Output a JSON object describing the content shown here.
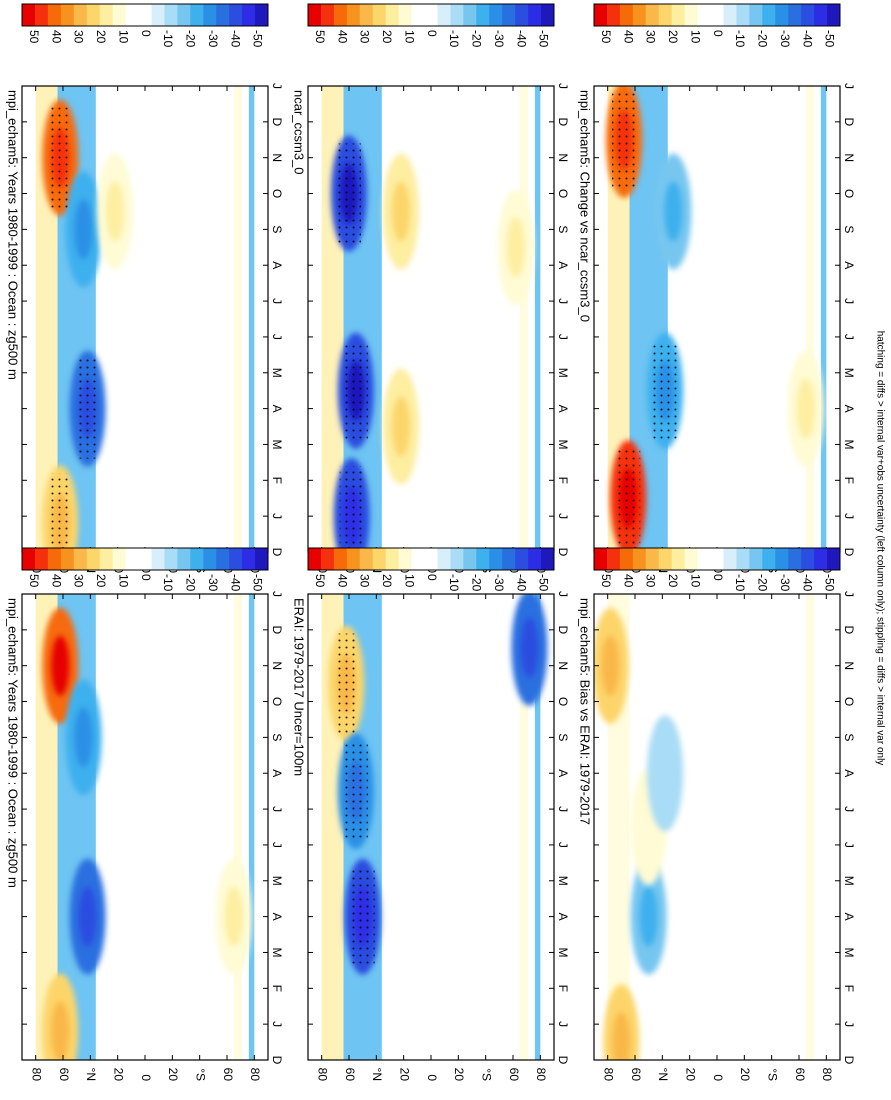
{
  "colorbar": {
    "labels": [
      "50",
      "40",
      "30",
      "20",
      "10",
      "0",
      "-10",
      "-20",
      "-30",
      "-40",
      "-50"
    ],
    "colors": [
      "#e60000",
      "#f5300c",
      "#f76a0a",
      "#f8921e",
      "#fab74a",
      "#fcd56b",
      "#fdeea0",
      "#fffbd4",
      "#ffffff",
      "#ffffff",
      "#d9eefb",
      "#a9dcf6",
      "#77c6f0",
      "#3eb0ee",
      "#2a90e6",
      "#2a6fe0",
      "#2c4ee0",
      "#2d2de6",
      "#1f19bd"
    ]
  },
  "footnote": "hatching = diffs > internal var+obs uncertainty (left column only); stippling = diffs > internal var only",
  "chart_data": [
    {
      "type": "heatmap",
      "panel": "left-top",
      "title": "mpi_echam5: Years 1980-1999 : Ocean : zg500 m",
      "x_ticks": [
        "D",
        "J",
        "F",
        "M",
        "A",
        "M",
        "J",
        "J",
        "A",
        "S",
        "O",
        "N",
        "D",
        "J"
      ],
      "y_ticks": [
        "80",
        "60",
        "°N",
        "20",
        "0",
        "20",
        "°S",
        "60",
        "80"
      ],
      "features": [
        {
          "month": 0.8,
          "lat": 62,
          "sign": "+",
          "value": 25
        },
        {
          "month": 11.0,
          "lat": 62,
          "sign": "+",
          "value": 45
        },
        {
          "month": 4.0,
          "lat": 42,
          "sign": "-",
          "value": -35
        },
        {
          "month": 9.0,
          "lat": 45,
          "sign": "-",
          "value": -25
        },
        {
          "month": 4.0,
          "lat": -65,
          "sign": "+",
          "value": 15
        }
      ]
    },
    {
      "type": "heatmap",
      "panel": "right-top",
      "title": "mpi_echam5: Years 1980-1999 : Ocean : zg500 m",
      "x_ticks": [
        "D",
        "J",
        "F",
        "M",
        "A",
        "M",
        "J",
        "J",
        "A",
        "S",
        "O",
        "N",
        "D",
        "J"
      ],
      "y_ticks": [
        "80",
        "60",
        "°N",
        "20",
        "0",
        "20",
        "°S",
        "60",
        "80"
      ],
      "features": [
        {
          "month": 0.8,
          "lat": 62,
          "sign": "+",
          "value": 25
        },
        {
          "month": 11.0,
          "lat": 62,
          "sign": "+",
          "value": 40
        },
        {
          "month": 4.0,
          "lat": 42,
          "sign": "-",
          "value": -35
        },
        {
          "month": 9.0,
          "lat": 45,
          "sign": "-",
          "value": -25
        },
        {
          "month": 9.5,
          "lat": 22,
          "sign": "+",
          "value": 15
        }
      ]
    },
    {
      "type": "heatmap",
      "panel": "left-middle",
      "title": "ERAI: 1979-2017 Uncer=100m",
      "x_ticks": [
        "D",
        "J",
        "F",
        "M",
        "A",
        "M",
        "J",
        "J",
        "A",
        "S",
        "O",
        "N",
        "D",
        "J"
      ],
      "y_ticks": [
        "80",
        "60",
        "°N",
        "20",
        "0",
        "20",
        "°S",
        "60",
        "80"
      ],
      "features": [
        {
          "month": 10.5,
          "lat": 62,
          "sign": "+",
          "value": 25
        },
        {
          "month": 4.0,
          "lat": 50,
          "sign": "-",
          "value": -40
        },
        {
          "month": 7.5,
          "lat": 55,
          "sign": "-",
          "value": -30
        },
        {
          "month": 11.5,
          "lat": -72,
          "sign": "-",
          "value": -35
        }
      ]
    },
    {
      "type": "heatmap",
      "panel": "right-middle",
      "title": "ncar_ccsm3_0",
      "x_ticks": [
        "D",
        "J",
        "F",
        "M",
        "A",
        "M",
        "J",
        "J",
        "A",
        "S",
        "O",
        "N",
        "D",
        "J"
      ],
      "y_ticks": [
        "80",
        "60",
        "°N",
        "20",
        "0",
        "20",
        "°S",
        "60",
        "80"
      ],
      "features": [
        {
          "month": 1.0,
          "lat": 58,
          "sign": "-",
          "value": -40
        },
        {
          "month": 4.5,
          "lat": 55,
          "sign": "-",
          "value": -45
        },
        {
          "month": 10.0,
          "lat": 60,
          "sign": "-",
          "value": -45
        },
        {
          "month": 3.5,
          "lat": 22,
          "sign": "+",
          "value": 20
        },
        {
          "month": 9.5,
          "lat": 22,
          "sign": "+",
          "value": 20
        },
        {
          "month": 8.5,
          "lat": -62,
          "sign": "+",
          "value": 15
        }
      ]
    },
    {
      "type": "heatmap",
      "panel": "left-bottom",
      "title": "mpi_echam5: Bias vs ERAI: 1979-2017",
      "x_ticks": [
        "D",
        "J",
        "F",
        "M",
        "A",
        "M",
        "J",
        "J",
        "A",
        "S",
        "O",
        "N",
        "D",
        "J"
      ],
      "y_ticks": [
        "80",
        "60",
        "°N",
        "20",
        "0",
        "20",
        "°S",
        "60",
        "80"
      ],
      "features": [
        {
          "month": 4.0,
          "lat": 50,
          "sign": "-",
          "value": -20
        },
        {
          "month": 6.5,
          "lat": 50,
          "sign": "+",
          "value": 10
        },
        {
          "month": 0.5,
          "lat": 70,
          "sign": "+",
          "value": 25
        },
        {
          "month": 11.0,
          "lat": 78,
          "sign": "+",
          "value": 25
        },
        {
          "month": 8.0,
          "lat": 38,
          "sign": "-",
          "value": -10
        }
      ]
    },
    {
      "type": "heatmap",
      "panel": "right-bottom",
      "title": "mpi_echam5: Change vs ncar_ccsm3_0",
      "x_ticks": [
        "D",
        "J",
        "F",
        "M",
        "A",
        "M",
        "J",
        "J",
        "A",
        "S",
        "O",
        "N",
        "D",
        "J"
      ],
      "y_ticks": [
        "80",
        "60",
        "°N",
        "20",
        "0",
        "20",
        "°S",
        "60",
        "80"
      ],
      "features": [
        {
          "month": 1.5,
          "lat": 65,
          "sign": "+",
          "value": 50
        },
        {
          "month": 11.5,
          "lat": 68,
          "sign": "+",
          "value": 40
        },
        {
          "month": 4.5,
          "lat": 38,
          "sign": "-",
          "value": -25
        },
        {
          "month": 9.5,
          "lat": 32,
          "sign": "-",
          "value": -20
        },
        {
          "month": 4.0,
          "lat": -65,
          "sign": "+",
          "value": 15
        }
      ]
    }
  ]
}
